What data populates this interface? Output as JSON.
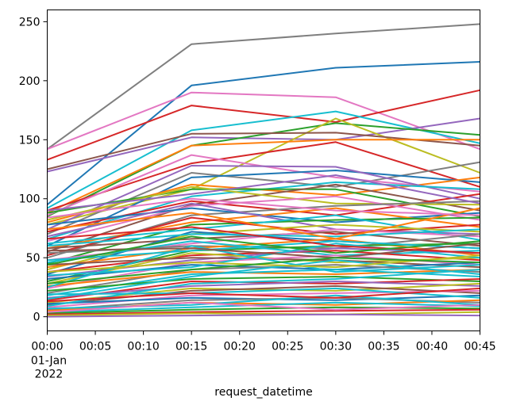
{
  "chart_data": {
    "type": "line",
    "title": "",
    "xlabel": "request_datetime",
    "ylabel": "",
    "x": [
      "00:00",
      "00:15",
      "00:30",
      "00:45"
    ],
    "x_date_label": [
      "01-Jan",
      "2022"
    ],
    "xticks": [
      "00:00",
      "00:05",
      "00:10",
      "00:15",
      "00:20",
      "00:25",
      "00:30",
      "00:35",
      "00:40",
      "00:45"
    ],
    "yticks": [
      0,
      50,
      100,
      150,
      200,
      250
    ],
    "ylim": [
      -12,
      260
    ],
    "grid": false,
    "legend": false,
    "palette": [
      "#1f77b4",
      "#ff7f0e",
      "#2ca02c",
      "#d62728",
      "#9467bd",
      "#8c564b",
      "#e377c2",
      "#7f7f7f",
      "#bcbd22",
      "#17becf"
    ],
    "series": [
      {
        "values": [
          142,
          231,
          240,
          248
        ],
        "color": "#7f7f7f"
      },
      {
        "values": [
          95,
          196,
          211,
          216
        ],
        "color": "#1f77b4"
      },
      {
        "values": [
          142,
          190,
          186,
          142
        ],
        "color": "#e377c2"
      },
      {
        "values": [
          133,
          179,
          165,
          192
        ],
        "color": "#d62728"
      },
      {
        "values": [
          92,
          158,
          174,
          147
        ],
        "color": "#17becf"
      },
      {
        "values": [
          123,
          152,
          150,
          168
        ],
        "color": "#9467bd"
      },
      {
        "values": [
          85,
          145,
          164,
          154
        ],
        "color": "#2ca02c"
      },
      {
        "values": [
          78,
          108,
          168,
          122
        ],
        "color": "#bcbd22"
      },
      {
        "values": [
          125,
          155,
          156,
          145
        ],
        "color": "#8c564b"
      },
      {
        "values": [
          88,
          145,
          150,
          150
        ],
        "color": "#ff7f0e"
      },
      {
        "values": [
          90,
          130,
          148,
          110
        ],
        "color": "#d62728"
      },
      {
        "values": [
          70,
          122,
          110,
          131
        ],
        "color": "#7f7f7f"
      },
      {
        "values": [
          86,
          137,
          118,
          106
        ],
        "color": "#e377c2"
      },
      {
        "values": [
          60,
          118,
          124,
          114
        ],
        "color": "#1f77b4"
      },
      {
        "values": [
          80,
          112,
          103,
          118
        ],
        "color": "#ff7f0e"
      },
      {
        "values": [
          74,
          128,
          127,
          100
        ],
        "color": "#9467bd"
      },
      {
        "values": [
          66,
          102,
          114,
          108
        ],
        "color": "#17becf"
      },
      {
        "values": [
          88,
          108,
          108,
          85
        ],
        "color": "#2ca02c"
      },
      {
        "values": [
          55,
          95,
          112,
          90
        ],
        "color": "#8c564b"
      },
      {
        "values": [
          72,
          98,
          86,
          104
        ],
        "color": "#d62728"
      },
      {
        "values": [
          82,
          110,
          96,
          95
        ],
        "color": "#bcbd22"
      },
      {
        "values": [
          64,
          94,
          102,
          82
        ],
        "color": "#e377c2"
      },
      {
        "values": [
          50,
          86,
          94,
          98
        ],
        "color": "#7f7f7f"
      },
      {
        "values": [
          78,
          92,
          80,
          88
        ],
        "color": "#1f77b4"
      },
      {
        "values": [
          58,
          80,
          92,
          76
        ],
        "color": "#ff7f0e"
      },
      {
        "values": [
          68,
          96,
          74,
          70
        ],
        "color": "#9467bd"
      },
      {
        "values": [
          45,
          78,
          82,
          84
        ],
        "color": "#2ca02c"
      },
      {
        "values": [
          62,
          74,
          86,
          65
        ],
        "color": "#17becf"
      },
      {
        "values": [
          52,
          84,
          70,
          78
        ],
        "color": "#d62728"
      },
      {
        "values": [
          40,
          70,
          78,
          72
        ],
        "color": "#bcbd22"
      },
      {
        "values": [
          58,
          66,
          72,
          60
        ],
        "color": "#8c564b"
      },
      {
        "values": [
          48,
          62,
          74,
          68
        ],
        "color": "#e377c2"
      },
      {
        "values": [
          36,
          72,
          64,
          58
        ],
        "color": "#1f77b4"
      },
      {
        "values": [
          54,
          60,
          58,
          70
        ],
        "color": "#7f7f7f"
      },
      {
        "values": [
          42,
          58,
          66,
          52
        ],
        "color": "#ff7f0e"
      },
      {
        "values": [
          30,
          56,
          60,
          62
        ],
        "color": "#2ca02c"
      },
      {
        "values": [
          46,
          64,
          52,
          56
        ],
        "color": "#17becf"
      },
      {
        "values": [
          38,
          52,
          56,
          48
        ],
        "color": "#d62728"
      },
      {
        "values": [
          34,
          48,
          58,
          54
        ],
        "color": "#9467bd"
      },
      {
        "values": [
          28,
          54,
          46,
          50
        ],
        "color": "#bcbd22"
      },
      {
        "values": [
          44,
          50,
          48,
          42
        ],
        "color": "#8c564b"
      },
      {
        "values": [
          24,
          46,
          52,
          44
        ],
        "color": "#e377c2"
      },
      {
        "values": [
          32,
          44,
          40,
          46
        ],
        "color": "#1f77b4"
      },
      {
        "values": [
          20,
          40,
          44,
          38
        ],
        "color": "#7f7f7f"
      },
      {
        "values": [
          26,
          38,
          36,
          40
        ],
        "color": "#ff7f0e"
      },
      {
        "values": [
          18,
          36,
          40,
          34
        ],
        "color": "#17becf"
      },
      {
        "values": [
          22,
          32,
          34,
          30
        ],
        "color": "#2ca02c"
      },
      {
        "values": [
          14,
          30,
          28,
          32
        ],
        "color": "#d62728"
      },
      {
        "values": [
          16,
          26,
          30,
          26
        ],
        "color": "#9467bd"
      },
      {
        "values": [
          12,
          24,
          22,
          28
        ],
        "color": "#bcbd22"
      },
      {
        "values": [
          10,
          22,
          26,
          20
        ],
        "color": "#8c564b"
      },
      {
        "values": [
          8,
          18,
          20,
          22
        ],
        "color": "#e377c2"
      },
      {
        "values": [
          11,
          16,
          14,
          18
        ],
        "color": "#1f77b4"
      },
      {
        "values": [
          6,
          14,
          16,
          12
        ],
        "color": "#7f7f7f"
      },
      {
        "values": [
          5,
          12,
          10,
          14
        ],
        "color": "#ff7f0e"
      },
      {
        "values": [
          4,
          8,
          12,
          9
        ],
        "color": "#17becf"
      },
      {
        "values": [
          3,
          6,
          8,
          7
        ],
        "color": "#2ca02c"
      },
      {
        "values": [
          2,
          4,
          5,
          6
        ],
        "color": "#d62728"
      },
      {
        "values": [
          1,
          3,
          2,
          4
        ],
        "color": "#bcbd22"
      },
      {
        "values": [
          0,
          1,
          2,
          1
        ],
        "color": "#9467bd"
      },
      {
        "values": [
          35,
          42,
          62,
          50
        ],
        "color": "#17becf"
      },
      {
        "values": [
          25,
          60,
          38,
          44
        ],
        "color": "#17becf"
      },
      {
        "values": [
          15,
          34,
          48,
          36
        ],
        "color": "#17becf"
      },
      {
        "values": [
          9,
          28,
          32,
          40
        ],
        "color": "#17becf"
      },
      {
        "values": [
          19,
          20,
          24,
          16
        ],
        "color": "#17becf"
      },
      {
        "values": [
          7,
          10,
          18,
          10
        ],
        "color": "#17becf"
      },
      {
        "values": [
          60,
          70,
          68,
          74
        ],
        "color": "#17becf"
      },
      {
        "values": [
          48,
          56,
          64,
          58
        ],
        "color": "#17becf"
      },
      {
        "values": [
          56,
          58,
          50,
          62
        ],
        "color": "#8c564b"
      },
      {
        "values": [
          38,
          46,
          42,
          52
        ],
        "color": "#bcbd22"
      },
      {
        "values": [
          66,
          76,
          60,
          54
        ],
        "color": "#d62728"
      },
      {
        "values": [
          74,
          88,
          66,
          92
        ],
        "color": "#ff7f0e"
      },
      {
        "values": [
          84,
          100,
          90,
          86
        ],
        "color": "#e377c2"
      },
      {
        "values": [
          90,
          104,
          120,
          96
        ],
        "color": "#9467bd"
      },
      {
        "values": [
          44,
          68,
          54,
          64
        ],
        "color": "#2ca02c"
      },
      {
        "values": [
          28,
          40,
          50,
          46
        ],
        "color": "#2ca02c"
      },
      {
        "values": [
          13,
          20,
          16,
          24
        ],
        "color": "#d62728"
      },
      {
        "values": [
          4,
          12,
          6,
          10
        ],
        "color": "#e377c2"
      }
    ]
  }
}
